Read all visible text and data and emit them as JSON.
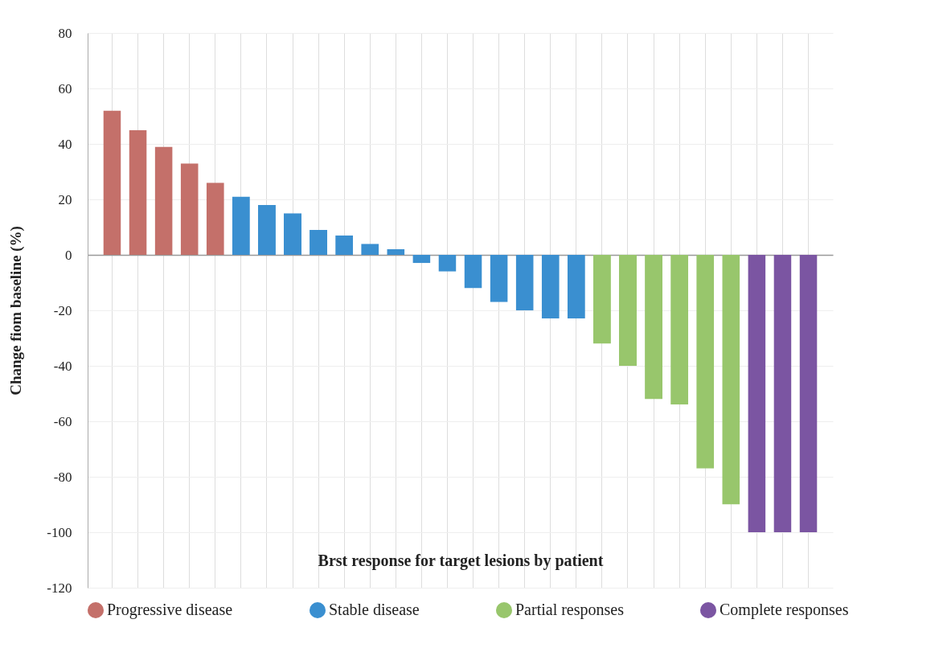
{
  "chart_data": {
    "type": "bar",
    "xlabel": "Brst response for target lesions by patient",
    "ylabel": "Change fiom baseline (%)",
    "categories": [
      null,
      null,
      null,
      null,
      null,
      null,
      null,
      null,
      null,
      null,
      null,
      null,
      null,
      null,
      null,
      null,
      null,
      null,
      null,
      null,
      null,
      null,
      null,
      null,
      null,
      null,
      null,
      null
    ],
    "series": [
      {
        "name": "Progressive disease",
        "color": "#c4706a",
        "values": [
          52,
          45,
          39,
          33,
          26,
          null,
          null,
          null,
          null,
          null,
          null,
          null,
          null,
          null,
          null,
          null,
          null,
          null,
          null,
          null,
          null,
          null,
          null,
          null,
          null,
          null,
          null,
          null
        ]
      },
      {
        "name": "Stable disease",
        "color": "#3a8fd0",
        "values": [
          null,
          null,
          null,
          null,
          null,
          21,
          18,
          15,
          9,
          7,
          4,
          2,
          -3,
          -6,
          -12,
          -17,
          -20,
          -23,
          -23,
          null,
          null,
          null,
          null,
          null,
          null,
          null,
          null,
          null
        ]
      },
      {
        "name": "Partial responses",
        "color": "#98c66c",
        "values": [
          null,
          null,
          null,
          null,
          null,
          null,
          null,
          null,
          null,
          null,
          null,
          null,
          null,
          null,
          null,
          null,
          null,
          null,
          null,
          -32,
          -40,
          -52,
          -54,
          -77,
          -90,
          null,
          null,
          null
        ]
      },
      {
        "name": "Complete responses",
        "color": "#7b55a2",
        "values": [
          null,
          null,
          null,
          null,
          null,
          null,
          null,
          null,
          null,
          null,
          null,
          null,
          null,
          null,
          null,
          null,
          null,
          null,
          null,
          null,
          null,
          null,
          null,
          null,
          null,
          -100,
          -100,
          -100
        ]
      }
    ],
    "ylim": [
      -120,
      80
    ],
    "yticks": [
      -120,
      -100,
      -80,
      -60,
      -40,
      -20,
      0,
      20,
      40,
      60,
      80
    ],
    "legend": "bottom",
    "grid": true
  }
}
